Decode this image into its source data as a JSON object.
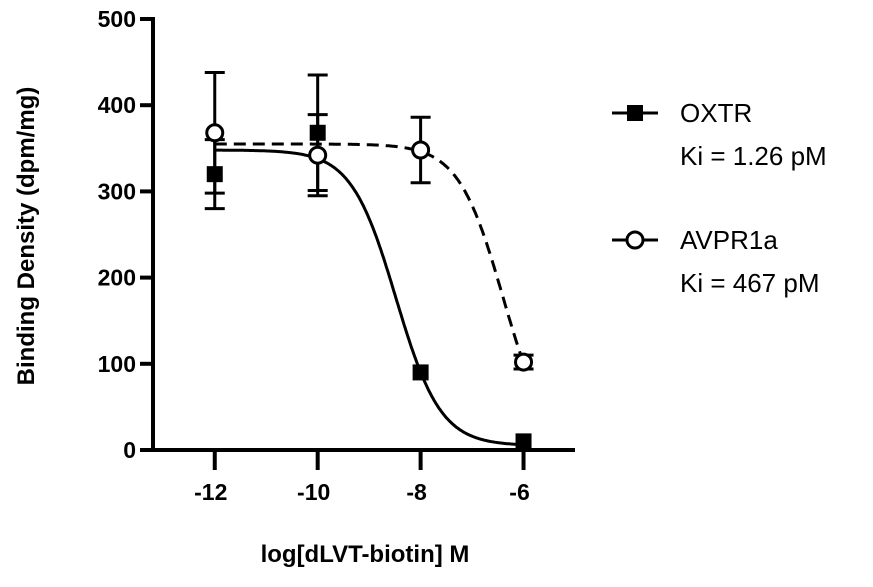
{
  "chart_data": {
    "type": "scatter",
    "title": "",
    "xlabel": "log[dLVT-biotin] M",
    "ylabel": "Binding Density (dpm/mg)",
    "xlim": [
      -13.2,
      -5.0
    ],
    "ylim": [
      0,
      500
    ],
    "xticks": [
      "-12",
      "-10",
      "-8",
      "-6"
    ],
    "xtick_values": [
      -12,
      -10,
      -8,
      -6
    ],
    "yticks": [
      "0",
      "100",
      "200",
      "300",
      "400",
      "500"
    ],
    "ytick_values": [
      0,
      100,
      200,
      300,
      400,
      500
    ],
    "grid": false,
    "legend_placement": "right",
    "series": [
      {
        "name": "OXTR",
        "annotation": "Ki = 1.26 pM",
        "marker": "filled-square",
        "line": "solid",
        "color": "#000000",
        "x": [
          -12,
          -10,
          -8,
          -6
        ],
        "y": [
          320,
          368,
          90,
          10
        ],
        "error": [
          40,
          67,
          0,
          0
        ],
        "fit": {
          "top": 348,
          "bottom": 5,
          "logIC50": -8.48,
          "hill": 1
        }
      },
      {
        "name": "AVPR1a",
        "annotation": "Ki = 467 pM",
        "marker": "open-circle",
        "line": "dashed",
        "color": "#000000",
        "x": [
          -12,
          -10,
          -8,
          -6
        ],
        "y": [
          368,
          342,
          348,
          102
        ],
        "error": [
          70,
          47,
          38,
          8
        ],
        "fit": {
          "top": 355,
          "bottom": 0,
          "logIC50": -6.4,
          "hill": 1
        }
      }
    ]
  }
}
